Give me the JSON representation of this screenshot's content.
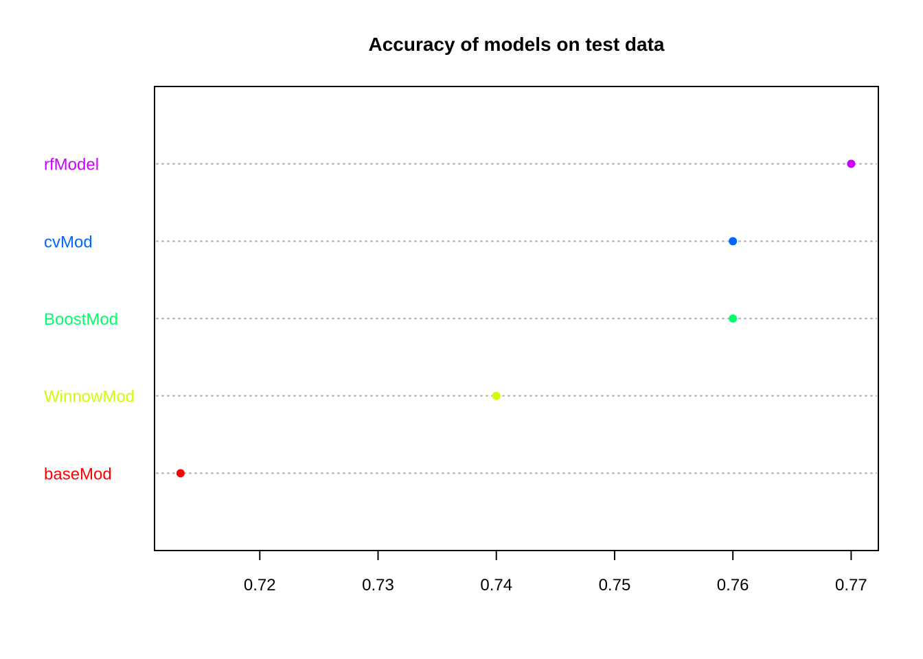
{
  "chart_data": {
    "type": "scatter",
    "subtype": "dotchart",
    "title": "Accuracy of models on test data",
    "xlabel": "",
    "ylabel": "",
    "xlim": [
      0.7111,
      0.7723
    ],
    "x_ticks": [
      0.72,
      0.73,
      0.74,
      0.75,
      0.76,
      0.77
    ],
    "x_tick_labels": [
      "0.72",
      "0.73",
      "0.74",
      "0.75",
      "0.76",
      "0.77"
    ],
    "grid": "dotted horizontal guide lines",
    "legend": "none",
    "points": [
      {
        "label": "baseMod",
        "value": 0.7133,
        "color": "#FF0000"
      },
      {
        "label": "WinnowMod",
        "value": 0.74,
        "color": "#CCFF00"
      },
      {
        "label": "BoostMod",
        "value": 0.76,
        "color": "#00FF66"
      },
      {
        "label": "cvMod",
        "value": 0.76,
        "color": "#0066FF"
      },
      {
        "label": "rfModel",
        "value": 0.77,
        "color": "#CC00FF"
      }
    ]
  }
}
